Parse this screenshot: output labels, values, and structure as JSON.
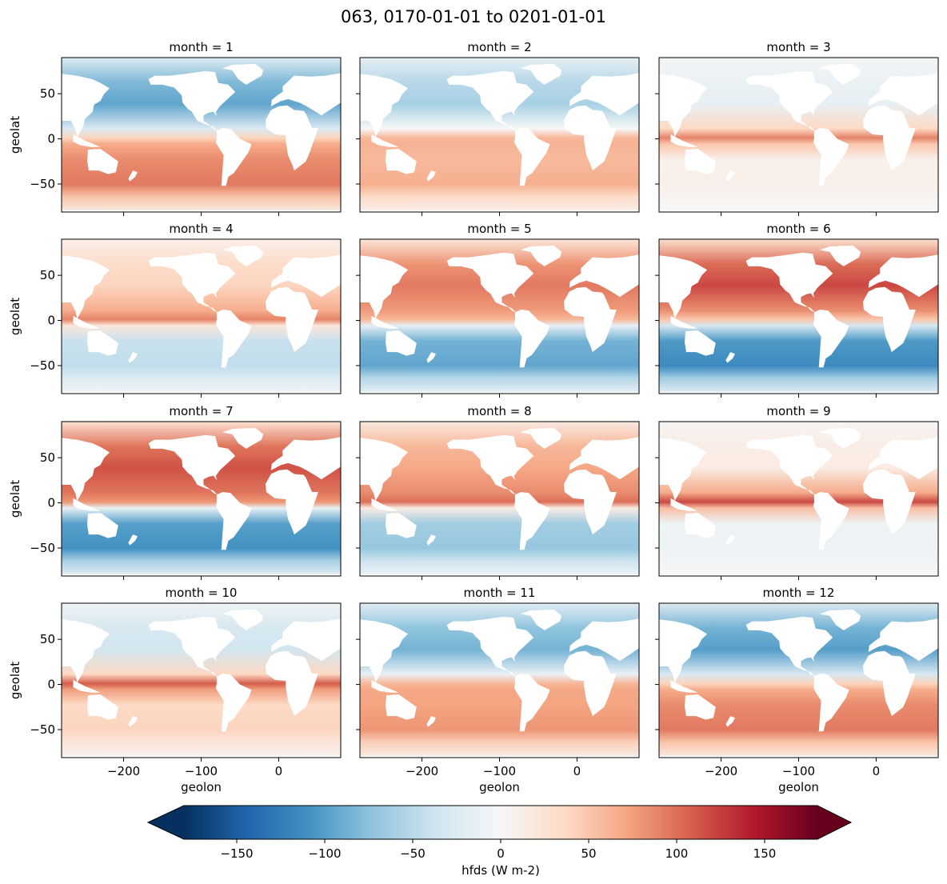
{
  "chart_data": {
    "type": "heatmap",
    "title": "063, 0170-01-01 to 0201-01-01",
    "variable": "hfds",
    "units": "W m-2",
    "colorbar_label": "hfds (W m-2)",
    "colormap": "RdBu_r",
    "colorbar_limits": [
      -180,
      180
    ],
    "colorbar_extend": "both",
    "colorbar_ticks": [
      -150,
      -100,
      -50,
      0,
      50,
      100,
      150
    ],
    "colorbar_tick_labels": [
      "−150",
      "−100",
      "−50",
      "0",
      "50",
      "100",
      "150"
    ],
    "xlabel": "geolon",
    "ylabel": "geolat",
    "xlim": [
      -280,
      80
    ],
    "ylim": [
      -81,
      90
    ],
    "xticks": [
      -200,
      -100,
      0
    ],
    "xtick_labels": [
      "−200",
      "−100",
      "0"
    ],
    "yticks": [
      -50,
      0,
      50
    ],
    "ytick_labels": [
      "−50",
      "0",
      "50"
    ],
    "facet_rows": 4,
    "facet_cols": 3,
    "panels": [
      {
        "label": "month = 1",
        "month": 1,
        "northern_hemisphere_mean": -95,
        "southern_hemisphere_mean": 95,
        "equator_band": 40
      },
      {
        "label": "month = 2",
        "month": 2,
        "northern_hemisphere_mean": -60,
        "southern_hemisphere_mean": 65,
        "equator_band": 60
      },
      {
        "label": "month = 3",
        "month": 3,
        "northern_hemisphere_mean": -15,
        "southern_hemisphere_mean": 10,
        "equator_band": 90
      },
      {
        "label": "month = 4",
        "month": 4,
        "northern_hemisphere_mean": 40,
        "southern_hemisphere_mean": -45,
        "equator_band": 90
      },
      {
        "label": "month = 5",
        "month": 5,
        "northern_hemisphere_mean": 95,
        "southern_hemisphere_mean": -95,
        "equator_band": 60
      },
      {
        "label": "month = 6",
        "month": 6,
        "northern_hemisphere_mean": 120,
        "southern_hemisphere_mean": -115,
        "equator_band": 50
      },
      {
        "label": "month = 7",
        "month": 7,
        "northern_hemisphere_mean": 115,
        "southern_hemisphere_mean": -110,
        "equator_band": 80
      },
      {
        "label": "month = 8",
        "month": 8,
        "northern_hemisphere_mean": 70,
        "southern_hemisphere_mean": -70,
        "equator_band": 100
      },
      {
        "label": "month = 9",
        "month": 9,
        "northern_hemisphere_mean": 15,
        "southern_hemisphere_mean": -10,
        "equator_band": 120
      },
      {
        "label": "month = 10",
        "month": 10,
        "northern_hemisphere_mean": -35,
        "southern_hemisphere_mean": 40,
        "equator_band": 110
      },
      {
        "label": "month = 11",
        "month": 11,
        "northern_hemisphere_mean": -85,
        "southern_hemisphere_mean": 80,
        "equator_band": 60
      },
      {
        "label": "month = 12",
        "month": 12,
        "northern_hemisphere_mean": -100,
        "southern_hemisphere_mean": 95,
        "equator_band": 40
      }
    ]
  }
}
